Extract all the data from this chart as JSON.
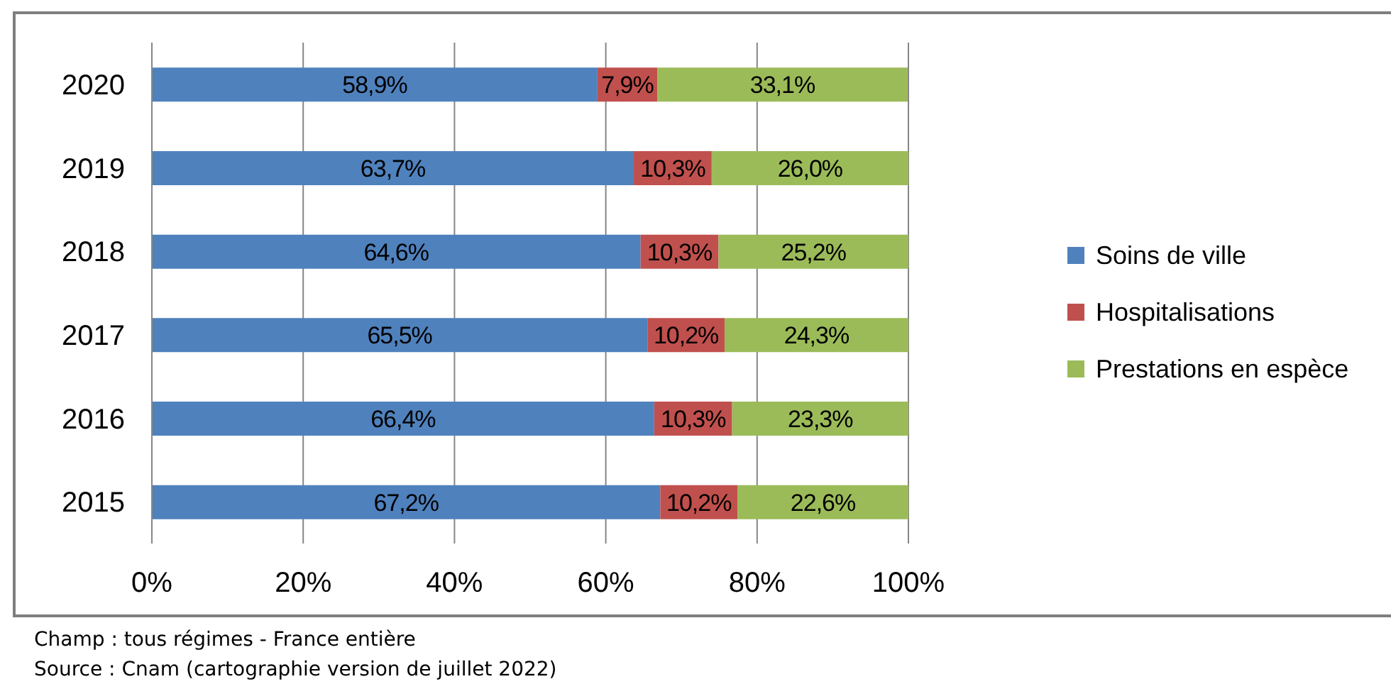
{
  "chart_data": {
    "type": "bar",
    "orientation": "horizontal",
    "stacked": true,
    "categories": [
      "2020",
      "2019",
      "2018",
      "2017",
      "2016",
      "2015"
    ],
    "series": [
      {
        "name": "Soins de ville",
        "color": "#4f81bd",
        "values": [
          58.9,
          63.7,
          64.6,
          65.5,
          66.4,
          67.2
        ],
        "value_labels": [
          "58,9%",
          "63,7%",
          "64,6%",
          "65,5%",
          "66,4%",
          "67,2%"
        ]
      },
      {
        "name": "Hospitalisations",
        "color": "#c0504d",
        "values": [
          7.9,
          10.3,
          10.3,
          10.2,
          10.3,
          10.2
        ],
        "value_labels": [
          "7,9%",
          "10,3%",
          "10,3%",
          "10,2%",
          "10,3%",
          "10,2%"
        ]
      },
      {
        "name": "Prestations en espèce",
        "color": "#9bbb59",
        "values": [
          33.1,
          26.0,
          25.2,
          24.3,
          23.3,
          22.6
        ],
        "value_labels": [
          "33,1%",
          "26,0%",
          "25,2%",
          "24,3%",
          "23,3%",
          "22,6%"
        ]
      }
    ],
    "xlim": [
      0,
      100
    ],
    "xticks": [
      {
        "value": 0,
        "label": "0%"
      },
      {
        "value": 20,
        "label": "20%"
      },
      {
        "value": 40,
        "label": "40%"
      },
      {
        "value": 60,
        "label": "60%"
      },
      {
        "value": 80,
        "label": "80%"
      },
      {
        "value": 100,
        "label": "100%"
      }
    ],
    "grid": "x",
    "legend": "right",
    "annotations": [
      "Champ : tous régimes - France entière",
      "Source : Cnam (cartographie version de juillet 2022)"
    ]
  }
}
